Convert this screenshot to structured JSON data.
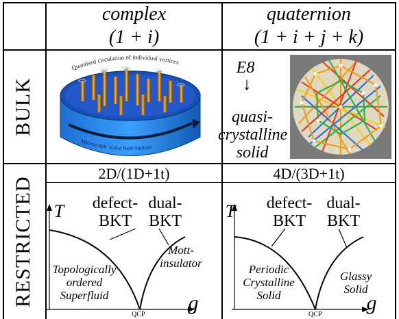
{
  "header": {
    "col1_title": "complex",
    "col1_sub": "(1 + i)",
    "col2_title": "quaternion",
    "col2_sub": "(1 + i + j + k)"
  },
  "rows": {
    "bulk": "BULK",
    "restricted": "RESTRICTED"
  },
  "bulk": {
    "left_caption_top": "Quantised circulation of individual vortices",
    "left_caption_side": "Microscopic scalar field rotation",
    "right_e8": "E8",
    "right_arrow": "↓",
    "right_line1": "quasi-",
    "right_line2": "crystalline",
    "right_line3": "solid"
  },
  "restricted": {
    "left_dim": "2D/(1D+1t)",
    "right_dim": "4D/(3D+1t)",
    "left": {
      "t_axis": "T",
      "g_axis": "g",
      "defect": "defect-",
      "defect2": "BKT",
      "dual": "dual-",
      "dual2": "BKT",
      "phase_left_1": "Topologically",
      "phase_left_2": "ordered",
      "phase_left_3": "Superfluid",
      "phase_right_1": "Mott-",
      "phase_right_2": "insulator",
      "qcp": "QCP"
    },
    "right": {
      "t_axis": "T",
      "g_axis": "g",
      "defect": "defect-",
      "defect2": "BKT",
      "dual": "dual-",
      "dual2": "BKT",
      "phase_left_1": "Periodic",
      "phase_left_2": "Crystalline",
      "phase_left_3": "Solid",
      "phase_right_1": "Glassy",
      "phase_right_2": "Solid",
      "qcp": "QCP"
    }
  }
}
